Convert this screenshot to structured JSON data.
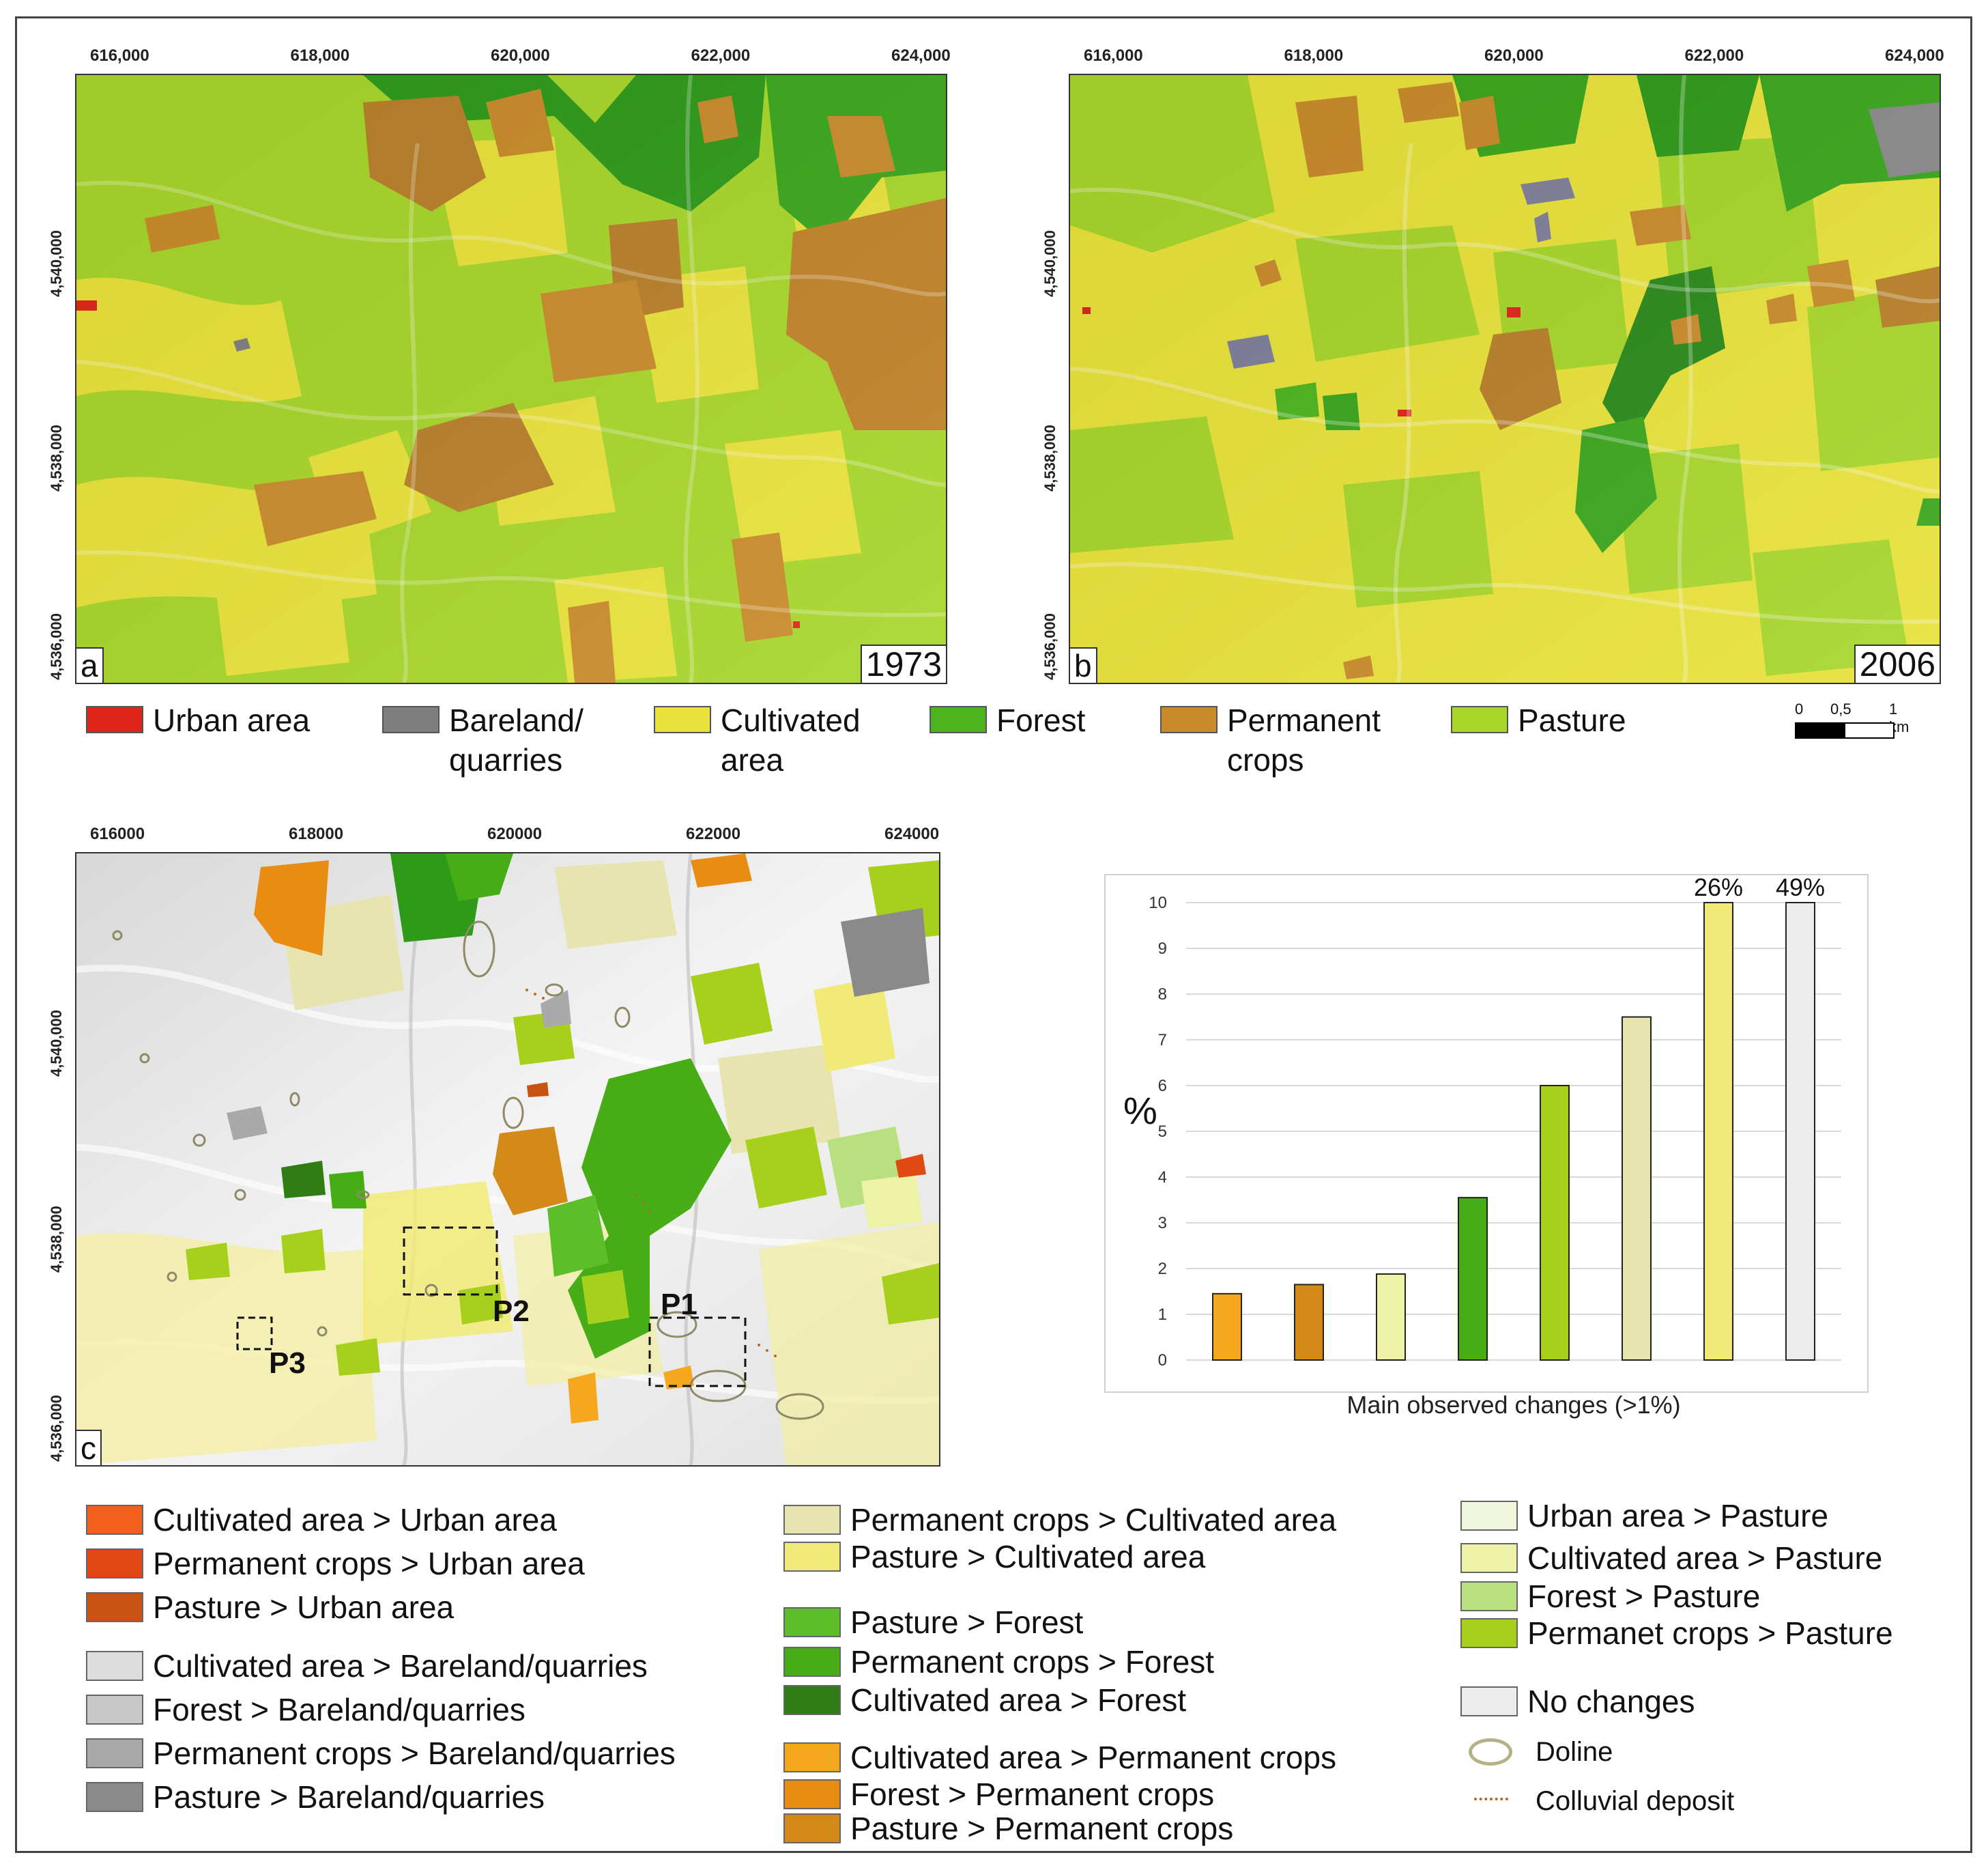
{
  "maps": {
    "x_ticks": [
      "616,000",
      "618,000",
      "620,000",
      "622,000",
      "624,000"
    ],
    "y_ticks": [
      "4,540,000",
      "4,538,000",
      "4,536,000"
    ],
    "x_ticks_c": [
      "616000",
      "618000",
      "620000",
      "622000",
      "624000"
    ],
    "y_ticks_c": [
      "4,540,000",
      "4,538,000",
      "4,536,000"
    ],
    "panel_a": {
      "letter": "a",
      "year": "1973"
    },
    "panel_b": {
      "letter": "b",
      "year": "2006"
    },
    "panel_c": {
      "letter": "c",
      "plots": [
        "P1",
        "P2",
        "P3"
      ]
    }
  },
  "landuse_legend": [
    {
      "label": "Urban area",
      "color": "#e0251b"
    },
    {
      "label": "Bareland/\nquarries",
      "color": "#7f7f7f"
    },
    {
      "label": "Cultivated\narea",
      "color": "#e8e23a"
    },
    {
      "label": "Forest",
      "color": "#4cb51d"
    },
    {
      "label": "Permanent\ncrops",
      "color": "#c98b2a"
    },
    {
      "label": "Pasture",
      "color": "#a7d62a"
    }
  ],
  "scale_bar": {
    "labels": [
      "0",
      "0,5",
      "1 km"
    ]
  },
  "change_legend": {
    "col1": [
      {
        "label": "Cultivated area > Urban area",
        "color": "#f0601a"
      },
      {
        "label": "Permanent crops > Urban area",
        "color": "#e04a12"
      },
      {
        "label": "Pasture > Urban area",
        "color": "#c8520f"
      },
      {
        "label": "Cultivated area > Bareland/quarries",
        "color": "#dcdcdc"
      },
      {
        "label": "Forest > Bareland/quarries",
        "color": "#c8c8c8"
      },
      {
        "label": "Permanent crops > Bareland/quarries",
        "color": "#a9a9a9"
      },
      {
        "label": "Pasture > Bareland/quarries",
        "color": "#8a8a8a"
      }
    ],
    "col2": [
      {
        "label": "Permanent crops > Cultivated area",
        "color": "#e8e4b0"
      },
      {
        "label": "Pasture > Cultivated area",
        "color": "#f2ea78"
      },
      {
        "label": "Pasture > Forest",
        "color": "#5cbf2a"
      },
      {
        "label": "Permanent crops > Forest",
        "color": "#46ad17"
      },
      {
        "label": "Cultivated area > Forest",
        "color": "#2f7d14"
      },
      {
        "label": "Cultivated area > Permanent crops",
        "color": "#f5a81d"
      },
      {
        "label": "Forest > Permanent crops",
        "color": "#e88c13"
      },
      {
        "label": "Pasture > Permanent crops",
        "color": "#d38a19"
      }
    ],
    "col3": [
      {
        "label": "Urban area > Pasture",
        "color": "#f1f7dc"
      },
      {
        "label": "Cultivated area > Pasture",
        "color": "#eef2a6"
      },
      {
        "label": "Forest > Pasture",
        "color": "#b9e07e"
      },
      {
        "label": "Permanet crops > Pasture",
        "color": "#a6d01c"
      },
      {
        "label": "No changes",
        "color": "#ececec"
      },
      {
        "label": "Doline",
        "color": "#b5b085"
      },
      {
        "label": "Colluvial deposit",
        "color": "#b06a2a"
      }
    ]
  },
  "chart_data": {
    "type": "bar",
    "title": "",
    "xlabel": "Main observed changes (>1%)",
    "ylabel": "%",
    "ylim": [
      0,
      10
    ],
    "yticks": [
      "0",
      "1",
      "2",
      "3",
      "4",
      "5",
      "6",
      "7",
      "8",
      "9",
      "10"
    ],
    "grid": true,
    "values": [
      1.45,
      1.65,
      1.88,
      3.55,
      6.0,
      7.5,
      26,
      49
    ],
    "colors": [
      "#f5a81d",
      "#d38a19",
      "#eef2a6",
      "#46ad17",
      "#a6d01c",
      "#e8e4b0",
      "#f2ea78",
      "#ececec"
    ],
    "data_labels": [
      "",
      "",
      "",
      "",
      "",
      "",
      "26%",
      "49%"
    ]
  }
}
